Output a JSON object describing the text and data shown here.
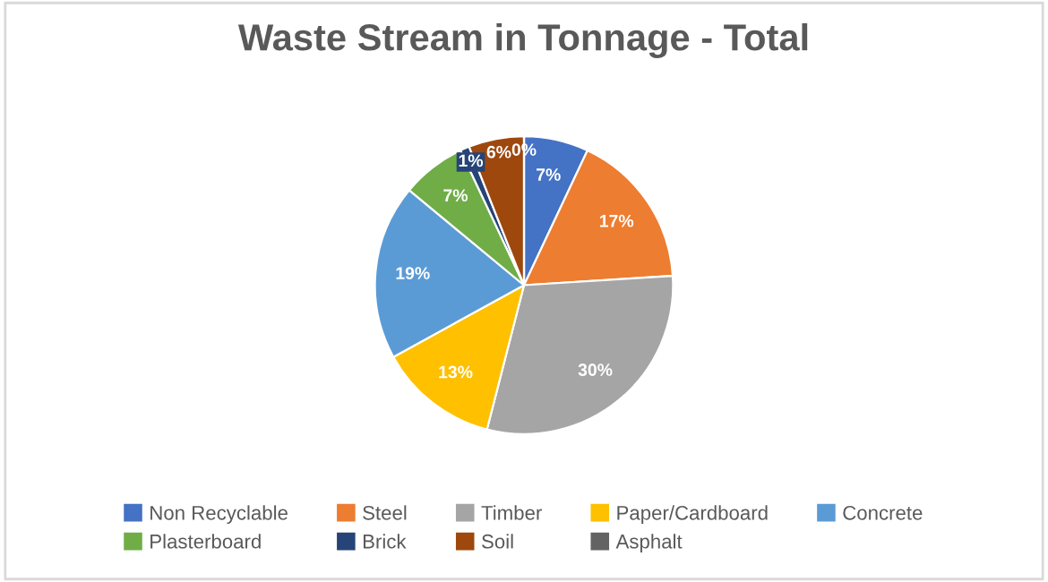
{
  "chart_data": {
    "type": "pie",
    "title": "Waste Stream in Tonnage - Total",
    "categories": [
      "Non Recyclable",
      "Steel",
      "Timber",
      "Paper/Cardboard",
      "Concrete",
      "Plasterboard",
      "Brick",
      "Soil",
      "Asphalt"
    ],
    "values": [
      7,
      17,
      30,
      13,
      19,
      7,
      1,
      6,
      0
    ],
    "colors": [
      "#4472c4",
      "#ed7d31",
      "#a5a5a5",
      "#ffc000",
      "#5b9bd5",
      "#70ad47",
      "#264478",
      "#9e480e",
      "#636363"
    ],
    "value_labels": [
      "7%",
      "17%",
      "30%",
      "13%",
      "19%",
      "7%",
      "1%",
      "6%",
      "0%"
    ],
    "legend": "bottom"
  }
}
